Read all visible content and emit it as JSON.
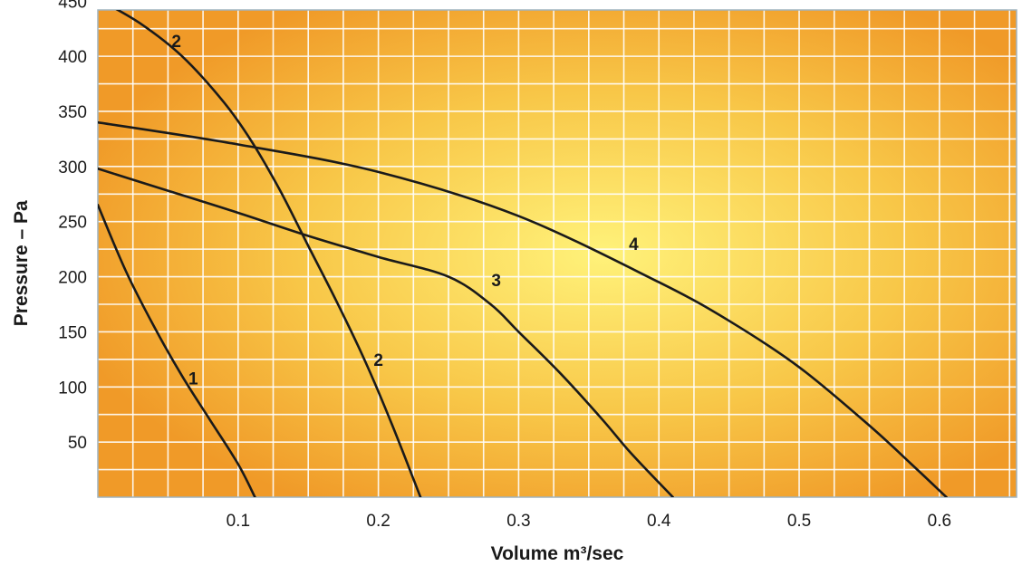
{
  "chart_data": {
    "type": "line",
    "title": "",
    "xlabel": "Volume m³/sec",
    "ylabel": "Pressure – Pa",
    "xlim": [
      0,
      0.655
    ],
    "ylim": [
      0,
      442
    ],
    "x_ticks": [
      {
        "value": 0.1,
        "label": "0.1"
      },
      {
        "value": 0.2,
        "label": "0.2"
      },
      {
        "value": 0.3,
        "label": "0.3"
      },
      {
        "value": 0.4,
        "label": "0.4"
      },
      {
        "value": 0.5,
        "label": "0.5"
      },
      {
        "value": 0.6,
        "label": "0.6"
      }
    ],
    "y_ticks": [
      {
        "value": 50,
        "label": "50"
      },
      {
        "value": 100,
        "label": "100"
      },
      {
        "value": 150,
        "label": "150"
      },
      {
        "value": 200,
        "label": "200"
      },
      {
        "value": 250,
        "label": "250"
      },
      {
        "value": 300,
        "label": "300"
      },
      {
        "value": 350,
        "label": "350"
      },
      {
        "value": 400,
        "label": "400"
      },
      {
        "value": 450,
        "label": "450"
      }
    ],
    "grid": true,
    "background_colors": {
      "center": "#fff27a",
      "edge": "#f09a28"
    },
    "line_color": "#1a1a1a",
    "series": [
      {
        "label": "1",
        "points": [
          [
            0,
            265
          ],
          [
            0.02,
            205
          ],
          [
            0.04,
            155
          ],
          [
            0.06,
            110
          ],
          [
            0.08,
            70
          ],
          [
            0.1,
            30
          ],
          [
            0.112,
            0
          ]
        ],
        "labels_at": [
          {
            "x": 0.068,
            "y": 108
          }
        ]
      },
      {
        "label": "2",
        "points": [
          [
            0,
            452
          ],
          [
            0.03,
            430
          ],
          [
            0.06,
            400
          ],
          [
            0.09,
            358
          ],
          [
            0.11,
            322
          ],
          [
            0.13,
            278
          ],
          [
            0.15,
            228
          ],
          [
            0.17,
            178
          ],
          [
            0.19,
            125
          ],
          [
            0.21,
            65
          ],
          [
            0.23,
            0
          ]
        ],
        "labels_at": [
          {
            "x": 0.056,
            "y": 414
          },
          {
            "x": 0.2,
            "y": 125
          }
        ]
      },
      {
        "label": "3",
        "points": [
          [
            0,
            298
          ],
          [
            0.05,
            278
          ],
          [
            0.1,
            258
          ],
          [
            0.15,
            237
          ],
          [
            0.2,
            218
          ],
          [
            0.25,
            200
          ],
          [
            0.28,
            175
          ],
          [
            0.3,
            150
          ],
          [
            0.33,
            112
          ],
          [
            0.36,
            70
          ],
          [
            0.38,
            40
          ],
          [
            0.41,
            0
          ]
        ],
        "labels_at": [
          {
            "x": 0.284,
            "y": 197
          }
        ]
      },
      {
        "label": "4",
        "points": [
          [
            0,
            340
          ],
          [
            0.1,
            320
          ],
          [
            0.2,
            295
          ],
          [
            0.3,
            255
          ],
          [
            0.4,
            195
          ],
          [
            0.45,
            160
          ],
          [
            0.5,
            118
          ],
          [
            0.55,
            65
          ],
          [
            0.58,
            30
          ],
          [
            0.605,
            0
          ]
        ],
        "labels_at": [
          {
            "x": 0.382,
            "y": 230
          }
        ]
      }
    ]
  }
}
